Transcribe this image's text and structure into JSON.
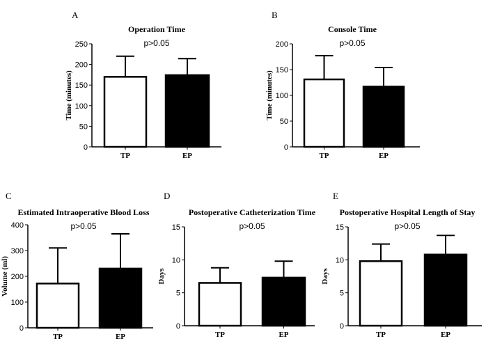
{
  "chart_data": [
    {
      "type": "bar",
      "panel_label": "A",
      "title": "Operation Time",
      "annotation": "p>0.05",
      "ylabel": "Time (minutes)",
      "xlabel": "",
      "categories": [
        "TP",
        "EP"
      ],
      "values": [
        170,
        174
      ],
      "error_upper": [
        220,
        214
      ],
      "ylim": [
        0,
        250
      ],
      "yticks": [
        0,
        50,
        100,
        150,
        200,
        250
      ],
      "bar_colors": [
        "#ffffff",
        "#000000"
      ],
      "grid": false
    },
    {
      "type": "bar",
      "panel_label": "B",
      "title": "Console Time",
      "annotation": "p>0.05",
      "ylabel": "Time (minutes)",
      "xlabel": "",
      "categories": [
        "TP",
        "EP"
      ],
      "values": [
        131,
        117
      ],
      "error_upper": [
        177,
        154
      ],
      "ylim": [
        0,
        200
      ],
      "yticks": [
        0,
        50,
        100,
        150,
        200
      ],
      "bar_colors": [
        "#ffffff",
        "#000000"
      ],
      "grid": false
    },
    {
      "type": "bar",
      "panel_label": "C",
      "title": "Estimated Intraoperative Blood Loss",
      "annotation": "p>0.05",
      "ylabel": "Volume (ml)",
      "xlabel": "",
      "categories": [
        "TP",
        "EP"
      ],
      "values": [
        172,
        230
      ],
      "error_upper": [
        310,
        365
      ],
      "ylim": [
        0,
        400
      ],
      "yticks": [
        0,
        100,
        200,
        300,
        400
      ],
      "bar_colors": [
        "#ffffff",
        "#000000"
      ],
      "grid": false
    },
    {
      "type": "bar",
      "panel_label": "D",
      "title": "Postoperative Catheterization Time",
      "annotation": "p>0.05",
      "ylabel": "Days",
      "xlabel": "",
      "categories": [
        "TP",
        "EP"
      ],
      "values": [
        6.5,
        7.3
      ],
      "error_upper": [
        8.8,
        9.8
      ],
      "ylim": [
        0,
        15
      ],
      "yticks": [
        0,
        5,
        10,
        15
      ],
      "bar_colors": [
        "#ffffff",
        "#000000"
      ],
      "grid": false
    },
    {
      "type": "bar",
      "panel_label": "E",
      "title": "Postoperative Hospital Length of Stay",
      "annotation": "p>0.05",
      "ylabel": "Days",
      "xlabel": "",
      "categories": [
        "TP",
        "EP"
      ],
      "values": [
        9.8,
        10.8
      ],
      "error_upper": [
        12.4,
        13.7
      ],
      "ylim": [
        0,
        15
      ],
      "yticks": [
        0,
        5,
        10,
        15
      ],
      "bar_colors": [
        "#ffffff",
        "#000000"
      ],
      "grid": false
    }
  ]
}
